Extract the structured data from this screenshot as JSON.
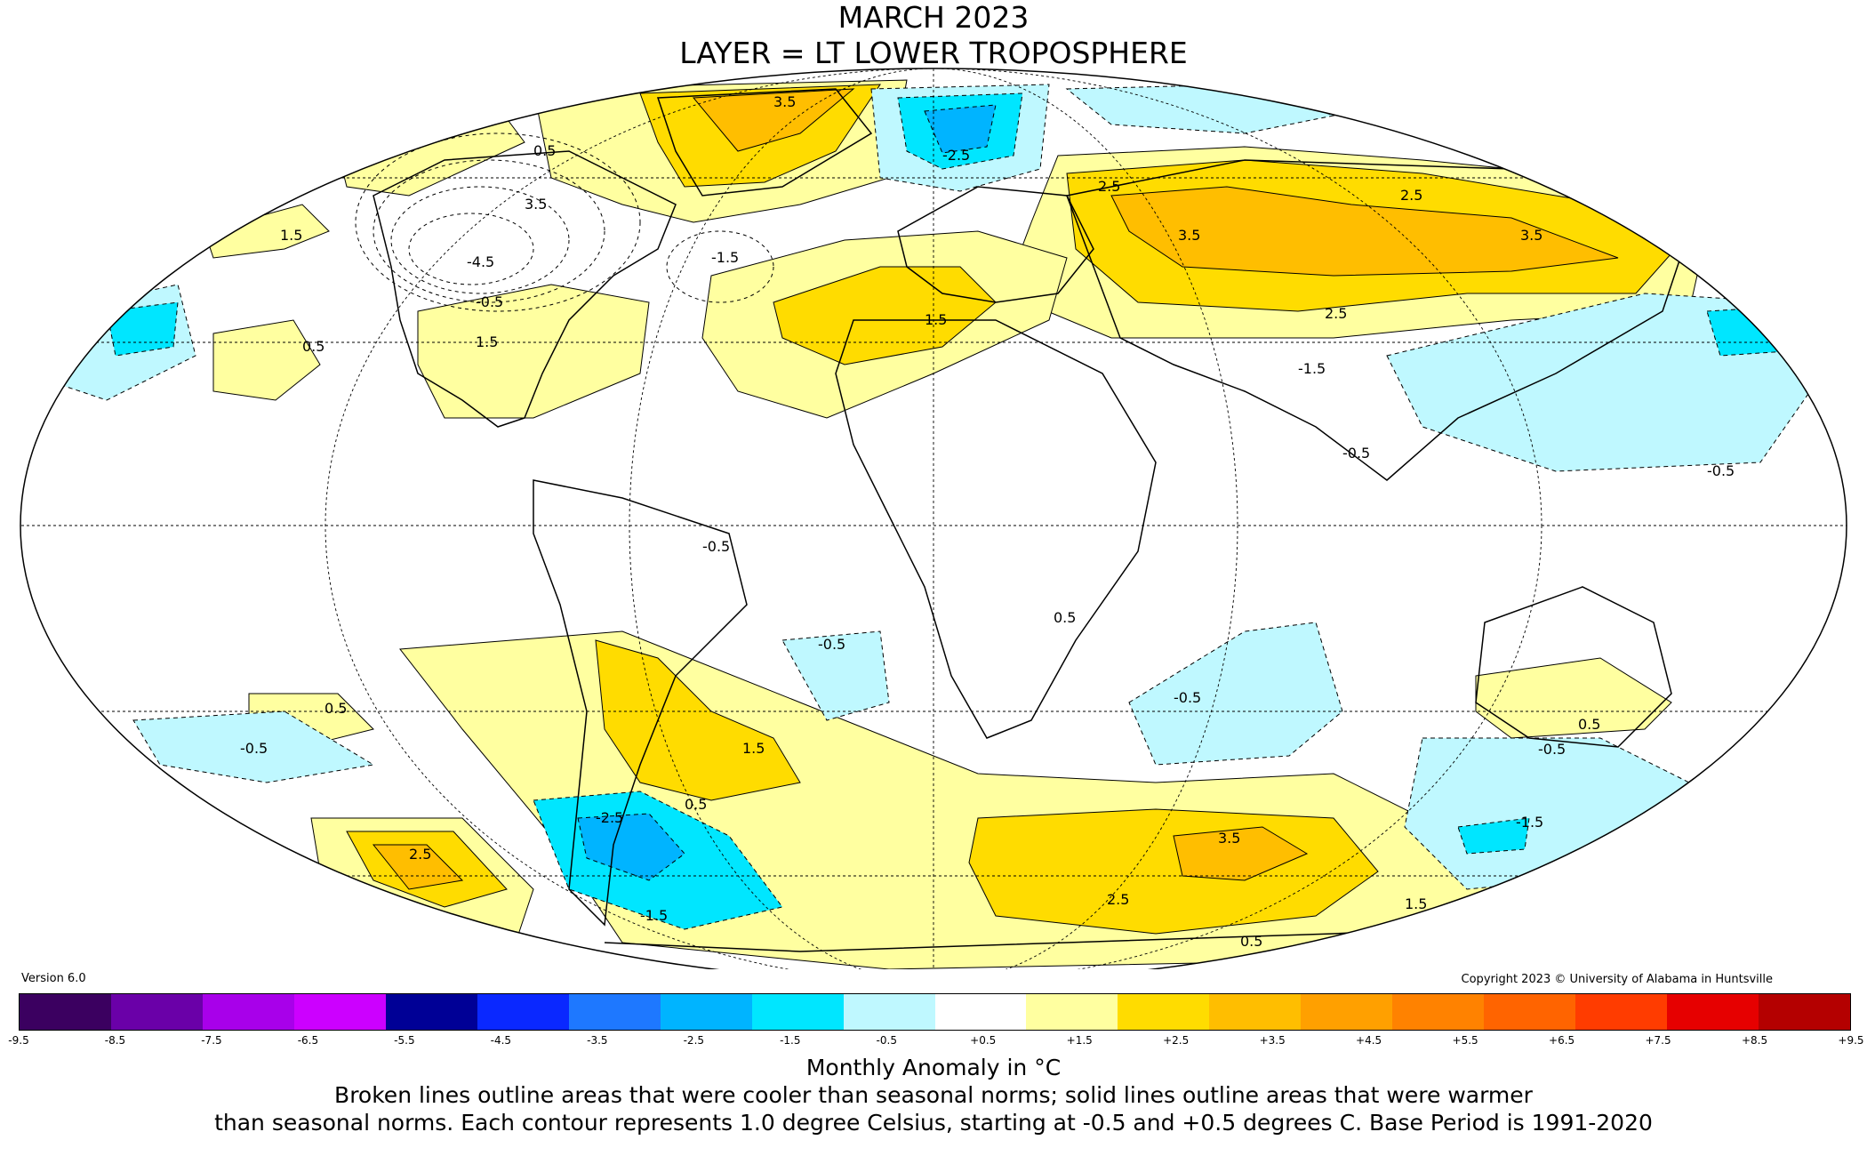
{
  "title": {
    "line1": "MARCH 2023",
    "line2": "LAYER = LT LOWER TROPOSPHERE"
  },
  "version": "Version 6.0",
  "copyright": "Copyright 2023 © University of Alabama in Huntsville",
  "colorbar": {
    "colors": [
      "#3b0060",
      "#6a00a8",
      "#a800ea",
      "#cc00ff",
      "#000096",
      "#0a28ff",
      "#1e78ff",
      "#00b4ff",
      "#00e6ff",
      "#bff8ff",
      "#ffffff",
      "#ffffa0",
      "#ffdc00",
      "#ffbe00",
      "#ffa000",
      "#ff8200",
      "#ff6400",
      "#ff3c00",
      "#e60000",
      "#b40000"
    ],
    "ticks": [
      "-9.5",
      "-8.5",
      "-7.5",
      "-6.5",
      "-5.5",
      "-4.5",
      "-3.5",
      "-2.5",
      "-1.5",
      "-0.5",
      "+0.5",
      "+1.5",
      "+2.5",
      "+3.5",
      "+4.5",
      "+5.5",
      "+6.5",
      "+7.5",
      "+8.5",
      "+9.5"
    ]
  },
  "units": "Monthly Anomaly in °C",
  "note_line1": "Broken lines outline areas that were cooler than seasonal norms; solid lines outline areas that were warmer",
  "note_line2": "than seasonal norms. Each contour represents 1.0 degree Celsius, starting at -0.5 and +0.5 degrees C. Base Period is 1991-2020",
  "contour_labels": [
    {
      "text": "0.5"
    },
    {
      "text": "1.5"
    },
    {
      "text": "3.5"
    },
    {
      "text": "-0.5"
    },
    {
      "text": "-1.5"
    },
    {
      "text": "-2.5"
    },
    {
      "text": "2.5"
    },
    {
      "text": "-3.5"
    },
    {
      "text": "-4.5"
    }
  ]
}
